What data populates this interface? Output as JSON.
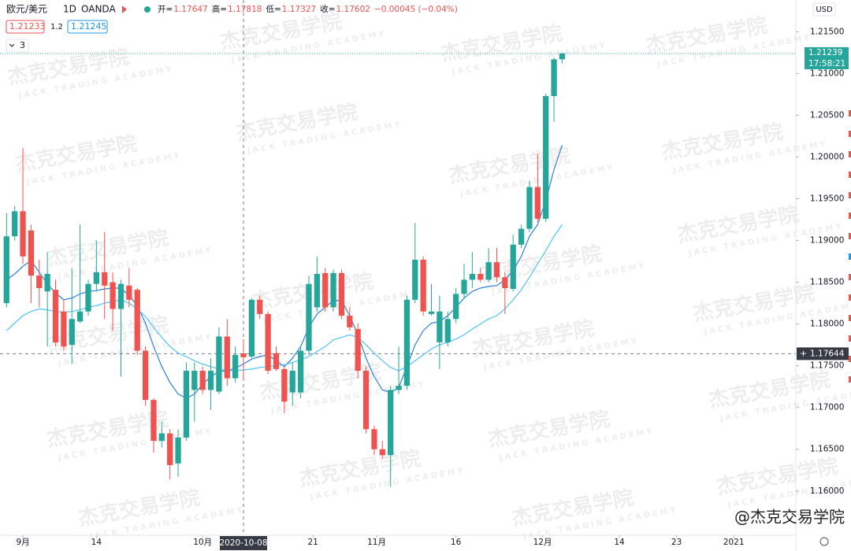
{
  "chart_data": {
    "type": "candlestick",
    "symbol": "欧元/美元",
    "interval": "1D",
    "source": "OANDA",
    "ohlc_labels": [
      "开=",
      "高=",
      "低=",
      "收="
    ],
    "change": "−0.00045 (−0.04%)",
    "indicator_values": [
      "1.21233",
      "1.2",
      "1.21245"
    ],
    "collapse_count": "3",
    "currency": "USD",
    "watermark": "杰克交易学院",
    "watermark_en": "JACK TRADING ACADEMY",
    "credit": "@杰克交易学院",
    "up_color": "#26a69a",
    "down_color": "#ef5350",
    "x": [
      0,
      1,
      2,
      3,
      4,
      5,
      6,
      7,
      8,
      9,
      10,
      11,
      12,
      13,
      14,
      15,
      16,
      17,
      18,
      19,
      20,
      21,
      22,
      23,
      24,
      25,
      26,
      27,
      28,
      29,
      30,
      31,
      32,
      33,
      34,
      35,
      36,
      37,
      38,
      39,
      40,
      41,
      42,
      43,
      44,
      45,
      46,
      47,
      48,
      49,
      50,
      51,
      52,
      53,
      54,
      55,
      56,
      57,
      58,
      59,
      60,
      61,
      62,
      63,
      64,
      65,
      66,
      67,
      68
    ],
    "open": [
      1.1825,
      1.1905,
      1.1935,
      1.1912,
      1.1858,
      1.1839,
      1.1841,
      1.1815,
      1.1775,
      1.1803,
      1.1815,
      1.1848,
      1.1862,
      1.185,
      1.1818,
      1.1846,
      1.1841,
      1.1768,
      1.1709,
      1.166,
      1.1669,
      1.1633,
      1.1664,
      1.1721,
      1.1744,
      1.1721,
      1.1719,
      1.1785,
      1.1735,
      1.17647,
      1.1761,
      1.1829,
      1.1812,
      1.1765,
      1.1746,
      1.1718,
      1.1718,
      1.1768,
      1.182,
      1.1861,
      1.182,
      1.1861,
      1.181,
      1.1794,
      1.1744,
      1.1674,
      1.165,
      1.1643,
      1.1721,
      1.1726,
      1.1829,
      1.1877,
      1.1812,
      1.1778,
      1.1778,
      1.1806,
      1.1836,
      1.1853,
      1.186,
      1.1853,
      1.1874,
      1.1856,
      1.1842,
      1.1895,
      1.1914,
      1.1964,
      1.1926,
      1.2073,
      1.2117
    ],
    "high": [
      1.1933,
      1.1941,
      1.2011,
      1.1919,
      1.1877,
      1.1886,
      1.1853,
      1.1829,
      1.1867,
      1.1919,
      1.1853,
      1.19,
      1.191,
      1.1862,
      1.1853,
      1.1867,
      1.1843,
      1.1773,
      1.1711,
      1.1683,
      1.1674,
      1.1674,
      1.1754,
      1.1754,
      1.1749,
      1.1759,
      1.1796,
      1.1806,
      1.1773,
      1.17818,
      1.1831,
      1.1834,
      1.1815,
      1.1773,
      1.1749,
      1.1754,
      1.1773,
      1.1858,
      1.1881,
      1.1867,
      1.1865,
      1.1865,
      1.182,
      1.1801,
      1.1749,
      1.1678,
      1.166,
      1.1726,
      1.1773,
      1.1834,
      1.1921,
      1.1881,
      1.1848,
      1.1834,
      1.1815,
      1.1843,
      1.1872,
      1.1886,
      1.1867,
      1.1891,
      1.1891,
      1.1862,
      1.1907,
      1.1919,
      1.1971,
      1.2004,
      1.2076,
      1.2119,
      1.2125
    ],
    "low": [
      1.182,
      1.19,
      1.1872,
      1.1825,
      1.182,
      1.1773,
      1.1773,
      1.1768,
      1.1752,
      1.1801,
      1.181,
      1.1839,
      1.1806,
      1.1792,
      1.1737,
      1.182,
      1.1763,
      1.1702,
      1.1646,
      1.1652,
      1.1614,
      1.1617,
      1.166,
      1.1683,
      1.1716,
      1.1697,
      1.1716,
      1.1726,
      1.173,
      1.17327,
      1.1759,
      1.1806,
      1.174,
      1.1744,
      1.1693,
      1.1702,
      1.1711,
      1.1763,
      1.1815,
      1.1815,
      1.1815,
      1.1806,
      1.1792,
      1.1735,
      1.1669,
      1.1643,
      1.1639,
      1.1605,
      1.1716,
      1.1721,
      1.1825,
      1.181,
      1.181,
      1.1746,
      1.1773,
      1.1801,
      1.1831,
      1.1843,
      1.185,
      1.185,
      1.185,
      1.1812,
      1.1839,
      1.1891,
      1.191,
      1.1922,
      1.1922,
      1.2042,
      1.2112
    ],
    "close": [
      1.1905,
      1.1935,
      1.1881,
      1.1858,
      1.1843,
      1.186,
      1.1778,
      1.1773,
      1.1806,
      1.1815,
      1.1848,
      1.1862,
      1.1846,
      1.1818,
      1.1848,
      1.1829,
      1.1768,
      1.1709,
      1.166,
      1.1669,
      1.1631,
      1.1664,
      1.1744,
      1.1744,
      1.1721,
      1.1744,
      1.1785,
      1.1735,
      1.1763,
      1.17602,
      1.1829,
      1.1812,
      1.1744,
      1.1746,
      1.1707,
      1.1744,
      1.1768,
      1.1848,
      1.186,
      1.182,
      1.1861,
      1.181,
      1.1796,
      1.1744,
      1.1674,
      1.165,
      1.1643,
      1.1721,
      1.1726,
      1.1829,
      1.1877,
      1.1815,
      1.1815,
      1.1815,
      1.1806,
      1.1836,
      1.1853,
      1.186,
      1.1853,
      1.1874,
      1.1856,
      1.1843,
      1.1895,
      1.1914,
      1.1964,
      1.1926,
      1.2073,
      1.2117,
      1.2124
    ],
    "series": [
      {
        "color": "#2d7fd8",
        "values": [
          1.1853,
          1.186,
          1.1869,
          1.1876,
          1.1862,
          1.1848,
          1.1837,
          1.1829,
          1.1831,
          1.1836,
          1.1839,
          1.184,
          1.1842,
          1.1843,
          1.1843,
          1.1834,
          1.1822,
          1.1801,
          1.1773,
          1.1749,
          1.173,
          1.1716,
          1.1711,
          1.1716,
          1.1728,
          1.1737,
          1.1743,
          1.1744,
          1.1747,
          1.1752,
          1.1758,
          1.1761,
          1.1763,
          1.1756,
          1.1749,
          1.1759,
          1.1773,
          1.1796,
          1.1812,
          1.182,
          1.1828,
          1.1828,
          1.181,
          1.1787,
          1.1759,
          1.1737,
          1.1721,
          1.1718,
          1.1724,
          1.1749,
          1.1775,
          1.1792,
          1.1801,
          1.1803,
          1.181,
          1.182,
          1.1831,
          1.1839,
          1.1843,
          1.1845,
          1.1846,
          1.1853,
          1.1864,
          1.1881,
          1.1905,
          1.1919,
          1.1948,
          1.1985,
          1.2014
        ]
      },
      {
        "color": "#4fc3f7",
        "values": [
          1.1792,
          1.1801,
          1.181,
          1.1815,
          1.1818,
          1.1817,
          1.1815,
          1.1814,
          1.1815,
          1.1817,
          1.182,
          1.1822,
          1.1825,
          1.1827,
          1.1829,
          1.1825,
          1.1818,
          1.1809,
          1.1796,
          1.1784,
          1.1773,
          1.1765,
          1.1761,
          1.1756,
          1.1752,
          1.1749,
          1.1746,
          1.1744,
          1.1744,
          1.1745,
          1.1746,
          1.1748,
          1.1749,
          1.175,
          1.1751,
          1.1754,
          1.1757,
          1.1761,
          1.1767,
          1.1773,
          1.1781,
          1.1784,
          1.1787,
          1.1784,
          1.1775,
          1.1765,
          1.1756,
          1.1748,
          1.1744,
          1.1749,
          1.1756,
          1.1763,
          1.177,
          1.1775,
          1.1778,
          1.1782,
          1.1787,
          1.1794,
          1.18,
          1.1806,
          1.181,
          1.1818,
          1.1829,
          1.1841,
          1.1856,
          1.1872,
          1.1888,
          1.1905,
          1.1919
        ]
      }
    ],
    "xlim": [
      -0.8,
      96.6
    ],
    "xticks": [
      {
        "value": 2,
        "label": "9月"
      },
      {
        "value": 11,
        "label": "14"
      },
      {
        "value": 24,
        "label": "10月"
      },
      {
        "value": 37.5,
        "label": "21"
      },
      {
        "value": 45.3,
        "label": "11月"
      },
      {
        "value": 55,
        "label": "16"
      },
      {
        "value": 65.6,
        "label": "12月"
      },
      {
        "value": 75,
        "label": "14"
      },
      {
        "value": 82,
        "label": "23"
      },
      {
        "value": 89,
        "label": "2021"
      }
    ],
    "ylim": [
      1.1547,
      1.2188
    ],
    "yticks": [
      {
        "value": 1.16,
        "label": "1.16000"
      },
      {
        "value": 1.165,
        "label": "1.16500"
      },
      {
        "value": 1.17,
        "label": "1.17000"
      },
      {
        "value": 1.175,
        "label": "1.17500"
      },
      {
        "value": 1.18,
        "label": "1.18000"
      },
      {
        "value": 1.185,
        "label": "1.18500"
      },
      {
        "value": 1.19,
        "label": "1.19000"
      },
      {
        "value": 1.195,
        "label": "1.19500"
      },
      {
        "value": 1.2,
        "label": "1.20000"
      },
      {
        "value": 1.205,
        "label": "1.20500"
      },
      {
        "value": 1.21,
        "label": "1.21000"
      },
      {
        "value": 1.215,
        "label": "1.21500"
      }
    ],
    "last_price": 1.21239,
    "countdown": "17:58:21",
    "crosshair": {
      "x": 29,
      "x_label": "2020-10-08",
      "y": 1.17644
    }
  }
}
